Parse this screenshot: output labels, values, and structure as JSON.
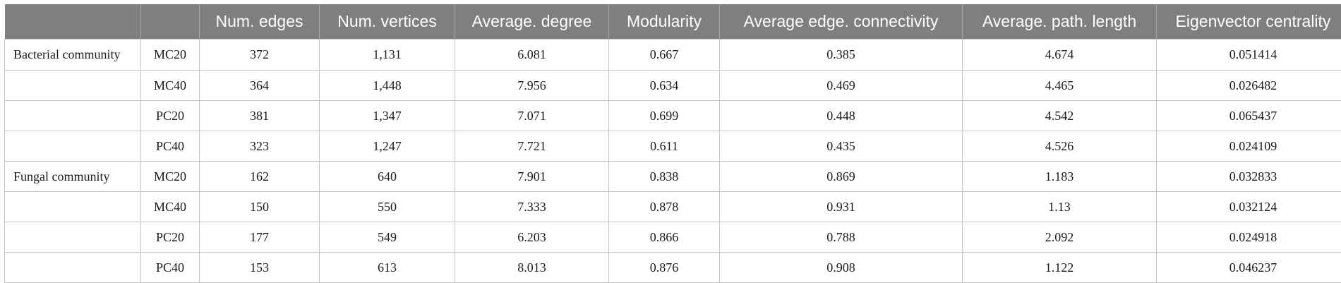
{
  "table": {
    "headers": [
      "",
      "",
      "Num. edges",
      "Num. vertices",
      "Average. degree",
      "Modularity",
      "Average edge. connectivity",
      "Average. path. length",
      "Eigenvector centrality"
    ],
    "rows": [
      [
        "Bacterial community",
        "MC20",
        "372",
        "1,131",
        "6.081",
        "0.667",
        "0.385",
        "4.674",
        "0.051414"
      ],
      [
        "",
        "MC40",
        "364",
        "1,448",
        "7.956",
        "0.634",
        "0.469",
        "4.465",
        "0.026482"
      ],
      [
        "",
        "PC20",
        "381",
        "1,347",
        "7.071",
        "0.699",
        "0.448",
        "4.542",
        "0.065437"
      ],
      [
        "",
        "PC40",
        "323",
        "1,247",
        "7.721",
        "0.611",
        "0.435",
        "4.526",
        "0.024109"
      ],
      [
        "Fungal community",
        "MC20",
        "162",
        "640",
        "7.901",
        "0.838",
        "0.869",
        "1.183",
        "0.032833"
      ],
      [
        "",
        "MC40",
        "150",
        "550",
        "7.333",
        "0.878",
        "0.931",
        "1.13",
        "0.032124"
      ],
      [
        "",
        "PC20",
        "177",
        "549",
        "6.203",
        "0.866",
        "0.788",
        "2.092",
        "0.024918"
      ],
      [
        "",
        "PC40",
        "153",
        "613",
        "8.013",
        "0.876",
        "0.908",
        "1.122",
        "0.046237"
      ]
    ]
  }
}
